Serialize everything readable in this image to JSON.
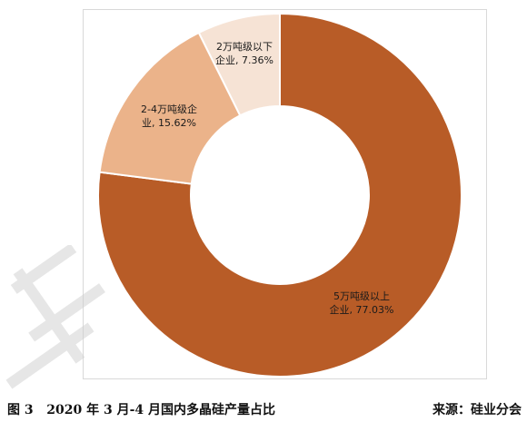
{
  "chart_data": {
    "type": "pie",
    "donut": true,
    "categories": [
      "5万吨级以上企业",
      "2-4万吨级企业",
      "2万吨级以下企业"
    ],
    "values": [
      77.03,
      15.62,
      7.36
    ],
    "unit": "%",
    "colors": [
      "#b85c27",
      "#ebb38a",
      "#f6e3d5"
    ],
    "labels": [
      {
        "line1": "5万吨级以上",
        "line2": "企业, 77.03%"
      },
      {
        "line1": "2-4万吨级企",
        "line2": "业, 15.62%"
      },
      {
        "line1": "2万吨级以下",
        "line2": "企业, 7.36%"
      }
    ],
    "legend": "none"
  },
  "caption": {
    "title": "图 3   2020 年 3 月-4 月国内多晶硅产量占比",
    "source": "来源：硅业分会"
  },
  "watermark": {
    "text": "硅",
    "color": "#c8c8c8"
  }
}
